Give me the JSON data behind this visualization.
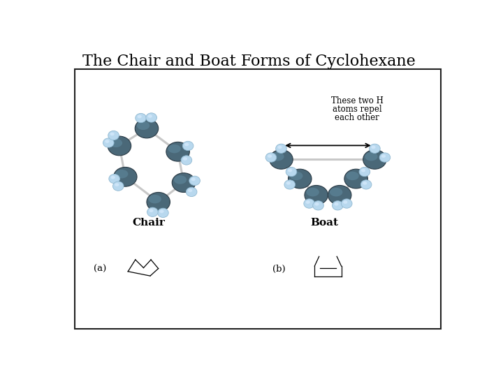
{
  "title": "The Chair and Boat Forms of Cyclohexane",
  "title_fontsize": 16,
  "bg_color": "#ffffff",
  "box_color": "#222222",
  "label_chair": "Chair",
  "label_boat": "Boat",
  "label_a": "(a)",
  "label_b": "(b)",
  "annotation_line1": "These two H",
  "annotation_line2": "atoms repel",
  "annotation_line3": "each other",
  "carbon_color": "#4a6878",
  "carbon_edge": "#2a3a45",
  "carbon_highlight": "#6a98b0",
  "hydrogen_color": "#b8d8ee",
  "hydrogen_edge": "#90b8d0",
  "hydrogen_highlight": "#ddeeff",
  "bond_color": "#c8c8c8",
  "bond_width": 2.2
}
